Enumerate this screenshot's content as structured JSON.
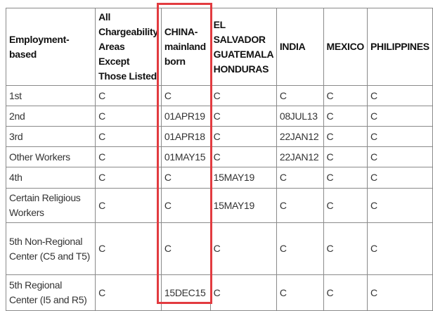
{
  "headers": [
    "Employment-based",
    "All Chargeability Areas Except Those Listed",
    "CHINA-mainland born",
    "EL SALVADOR GUATEMALA HONDURAS",
    "INDIA",
    "MEXICO",
    "PHILIPPINES"
  ],
  "rows": [
    [
      "1st",
      "C",
      "C",
      "C",
      "C",
      "C",
      "C"
    ],
    [
      "2nd",
      "C",
      "01APR19",
      "C",
      "08JUL13",
      "C",
      "C"
    ],
    [
      "3rd",
      "C",
      "01APR18",
      "C",
      "22JAN12",
      "C",
      "C"
    ],
    [
      "Other Workers",
      "C",
      "01MAY15",
      "C",
      "22JAN12",
      "C",
      "C"
    ],
    [
      "4th",
      "C",
      "C",
      "15MAY19",
      "C",
      "C",
      "C"
    ],
    [
      "Certain Religious Workers",
      "C",
      "C",
      "15MAY19",
      "C",
      "C",
      "C"
    ],
    [
      "5th Non-Regional Center (C5 and T5)",
      "C",
      "C",
      "C",
      "C",
      "C",
      "C"
    ],
    [
      "5th Regional Center (I5 and R5)",
      "C",
      "15DEC15",
      "C",
      "C",
      "C",
      "C"
    ]
  ],
  "highlight": {
    "column": "CHINA-mainland born",
    "color": "#e23b40"
  }
}
